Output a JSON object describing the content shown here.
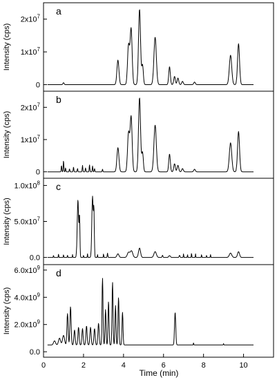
{
  "x_axis": {
    "label": "Time (min)",
    "ticks": [
      0,
      2,
      4,
      6,
      8,
      10
    ],
    "range": [
      0,
      11.5
    ]
  },
  "chart_data": [
    {
      "type": "line",
      "panel_label": "a",
      "ylabel": "Intensity (cps)",
      "ylim": [
        -2000000,
        25000000
      ],
      "yticks": [
        {
          "v": 0,
          "base": "0",
          "exp": ""
        },
        {
          "v": 10000000,
          "base": "1x10",
          "exp": "7"
        },
        {
          "v": 20000000,
          "base": "2x10",
          "exp": "7"
        }
      ],
      "baseline": 0,
      "noise": 0,
      "peaks": [
        {
          "t": 1.0,
          "h": 600000,
          "w": 0.03
        },
        {
          "t": 3.72,
          "h": 7500000,
          "w": 0.05
        },
        {
          "t": 4.25,
          "h": 12000000,
          "w": 0.05
        },
        {
          "t": 4.38,
          "h": 17000000,
          "w": 0.05
        },
        {
          "t": 4.8,
          "h": 23000000,
          "w": 0.05
        },
        {
          "t": 4.95,
          "h": 6000000,
          "w": 0.04
        },
        {
          "t": 5.58,
          "h": 14500000,
          "w": 0.06
        },
        {
          "t": 6.3,
          "h": 5500000,
          "w": 0.04
        },
        {
          "t": 6.55,
          "h": 2500000,
          "w": 0.04
        },
        {
          "t": 6.72,
          "h": 2000000,
          "w": 0.04
        },
        {
          "t": 6.95,
          "h": 1000000,
          "w": 0.04
        },
        {
          "t": 7.55,
          "h": 800000,
          "w": 0.04
        },
        {
          "t": 9.35,
          "h": 9000000,
          "w": 0.06
        },
        {
          "t": 9.75,
          "h": 12500000,
          "w": 0.05
        }
      ]
    },
    {
      "type": "line",
      "panel_label": "b",
      "ylabel": "Intensity (cps)",
      "ylim": [
        -2000000,
        25000000
      ],
      "yticks": [
        {
          "v": 0,
          "base": "0",
          "exp": ""
        },
        {
          "v": 10000000,
          "base": "1x10",
          "exp": "7"
        },
        {
          "v": 20000000,
          "base": "2x10",
          "exp": "7"
        }
      ],
      "baseline": 0,
      "noise": 0,
      "peaks": [
        {
          "t": 0.9,
          "h": 2000000,
          "w": 0.015
        },
        {
          "t": 1.0,
          "h": 3500000,
          "w": 0.015
        },
        {
          "t": 1.1,
          "h": 1200000,
          "w": 0.015
        },
        {
          "t": 1.3,
          "h": 900000,
          "w": 0.015
        },
        {
          "t": 1.5,
          "h": 1500000,
          "w": 0.015
        },
        {
          "t": 1.7,
          "h": 1000000,
          "w": 0.015
        },
        {
          "t": 1.95,
          "h": 2000000,
          "w": 0.015
        },
        {
          "t": 2.1,
          "h": 1200000,
          "w": 0.015
        },
        {
          "t": 2.3,
          "h": 2200000,
          "w": 0.015
        },
        {
          "t": 2.45,
          "h": 1800000,
          "w": 0.015
        },
        {
          "t": 2.55,
          "h": 1000000,
          "w": 0.015
        },
        {
          "t": 2.95,
          "h": 800000,
          "w": 0.015
        },
        {
          "t": 3.72,
          "h": 7500000,
          "w": 0.05
        },
        {
          "t": 4.25,
          "h": 12000000,
          "w": 0.05
        },
        {
          "t": 4.38,
          "h": 17000000,
          "w": 0.05
        },
        {
          "t": 4.8,
          "h": 23000000,
          "w": 0.05
        },
        {
          "t": 4.95,
          "h": 6000000,
          "w": 0.04
        },
        {
          "t": 5.58,
          "h": 14500000,
          "w": 0.06
        },
        {
          "t": 6.3,
          "h": 5500000,
          "w": 0.04
        },
        {
          "t": 6.55,
          "h": 2500000,
          "w": 0.04
        },
        {
          "t": 6.72,
          "h": 2000000,
          "w": 0.04
        },
        {
          "t": 6.95,
          "h": 1000000,
          "w": 0.04
        },
        {
          "t": 7.55,
          "h": 800000,
          "w": 0.04
        },
        {
          "t": 9.35,
          "h": 9000000,
          "w": 0.06
        },
        {
          "t": 9.75,
          "h": 12500000,
          "w": 0.05
        }
      ]
    },
    {
      "type": "line",
      "panel_label": "c",
      "ylabel": "Intensity (cps)",
      "ylim": [
        -10000000,
        110000000
      ],
      "yticks": [
        {
          "v": 0,
          "base": "0.0",
          "exp": ""
        },
        {
          "v": 50000000,
          "base": "5.0x10",
          "exp": "7"
        },
        {
          "v": 100000000,
          "base": "1.0x10",
          "exp": "8"
        }
      ],
      "baseline": 0,
      "noise": 0,
      "peaks": [
        {
          "t": 0.5,
          "h": 3000000,
          "w": 0.01
        },
        {
          "t": 0.75,
          "h": 5000000,
          "w": 0.01
        },
        {
          "t": 1.0,
          "h": 4000000,
          "w": 0.01
        },
        {
          "t": 1.2,
          "h": 3000000,
          "w": 0.01
        },
        {
          "t": 1.45,
          "h": 4000000,
          "w": 0.01
        },
        {
          "t": 1.72,
          "h": 80000000,
          "w": 0.035
        },
        {
          "t": 1.8,
          "h": 55000000,
          "w": 0.02
        },
        {
          "t": 2.0,
          "h": 3000000,
          "w": 0.01
        },
        {
          "t": 2.2,
          "h": 5000000,
          "w": 0.01
        },
        {
          "t": 2.45,
          "h": 85000000,
          "w": 0.035
        },
        {
          "t": 2.52,
          "h": 60000000,
          "w": 0.02
        },
        {
          "t": 2.7,
          "h": 4000000,
          "w": 0.01
        },
        {
          "t": 3.0,
          "h": 5000000,
          "w": 0.01
        },
        {
          "t": 3.2,
          "h": 6000000,
          "w": 0.015
        },
        {
          "t": 3.72,
          "h": 5000000,
          "w": 0.05
        },
        {
          "t": 4.25,
          "h": 7000000,
          "w": 0.06
        },
        {
          "t": 4.4,
          "h": 9000000,
          "w": 0.06
        },
        {
          "t": 4.8,
          "h": 13000000,
          "w": 0.05
        },
        {
          "t": 5.58,
          "h": 8000000,
          "w": 0.06
        },
        {
          "t": 5.95,
          "h": 3000000,
          "w": 0.02
        },
        {
          "t": 6.3,
          "h": 2500000,
          "w": 0.04
        },
        {
          "t": 6.8,
          "h": 3000000,
          "w": 0.02
        },
        {
          "t": 7.0,
          "h": 5000000,
          "w": 0.01
        },
        {
          "t": 7.2,
          "h": 4000000,
          "w": 0.01
        },
        {
          "t": 7.4,
          "h": 6000000,
          "w": 0.01
        },
        {
          "t": 7.6,
          "h": 5000000,
          "w": 0.01
        },
        {
          "t": 7.9,
          "h": 4000000,
          "w": 0.01
        },
        {
          "t": 8.15,
          "h": 3000000,
          "w": 0.01
        },
        {
          "t": 8.35,
          "h": 4000000,
          "w": 0.01
        },
        {
          "t": 9.35,
          "h": 6000000,
          "w": 0.06
        },
        {
          "t": 9.75,
          "h": 8000000,
          "w": 0.05
        }
      ]
    },
    {
      "type": "line",
      "panel_label": "d",
      "ylabel": "Intensity (cps)",
      "ylim": [
        -400000000,
        6400000000
      ],
      "yticks": [
        {
          "v": 0,
          "base": "0.0",
          "exp": ""
        },
        {
          "v": 2000000000,
          "base": "2.0x10",
          "exp": "9"
        },
        {
          "v": 4000000000,
          "base": "4.0x10",
          "exp": "9"
        },
        {
          "v": 6000000000,
          "base": "6.0x10",
          "exp": "9"
        }
      ],
      "baseline": 500000000,
      "noise": 0,
      "peaks": [
        {
          "t": 0.55,
          "h": 300000000,
          "w": 0.05
        },
        {
          "t": 0.8,
          "h": 500000000,
          "w": 0.05
        },
        {
          "t": 1.0,
          "h": 700000000,
          "w": 0.05
        },
        {
          "t": 1.2,
          "h": 2300000000,
          "w": 0.03
        },
        {
          "t": 1.35,
          "h": 2800000000,
          "w": 0.03
        },
        {
          "t": 1.55,
          "h": 1100000000,
          "w": 0.03
        },
        {
          "t": 1.75,
          "h": 1300000000,
          "w": 0.03
        },
        {
          "t": 1.95,
          "h": 1200000000,
          "w": 0.03
        },
        {
          "t": 2.15,
          "h": 1400000000,
          "w": 0.03
        },
        {
          "t": 2.35,
          "h": 1300000000,
          "w": 0.03
        },
        {
          "t": 2.55,
          "h": 1200000000,
          "w": 0.03
        },
        {
          "t": 2.75,
          "h": 1600000000,
          "w": 0.03
        },
        {
          "t": 2.95,
          "h": 4900000000,
          "w": 0.025
        },
        {
          "t": 3.1,
          "h": 2600000000,
          "w": 0.025
        },
        {
          "t": 3.25,
          "h": 3200000000,
          "w": 0.025
        },
        {
          "t": 3.45,
          "h": 4600000000,
          "w": 0.025
        },
        {
          "t": 3.6,
          "h": 2900000000,
          "w": 0.025
        },
        {
          "t": 3.75,
          "h": 3500000000,
          "w": 0.025
        },
        {
          "t": 3.95,
          "h": 2400000000,
          "w": 0.025
        },
        {
          "t": 6.58,
          "h": 2400000000,
          "w": 0.03
        },
        {
          "t": 7.5,
          "h": 150000000,
          "w": 0.01
        },
        {
          "t": 9.0,
          "h": 100000000,
          "w": 0.01
        }
      ]
    }
  ]
}
